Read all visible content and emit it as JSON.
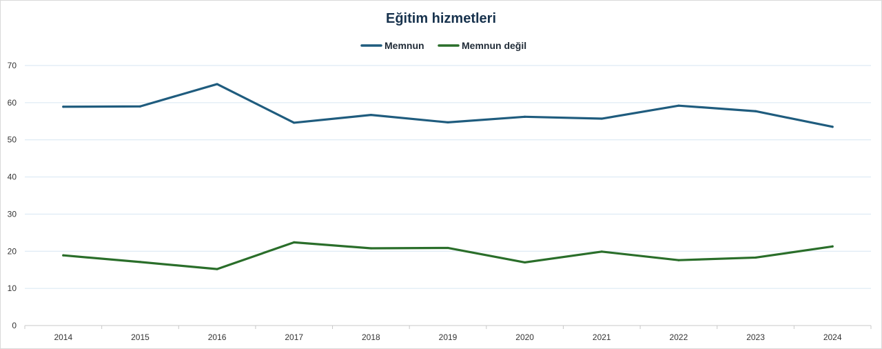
{
  "chart_data": {
    "type": "line",
    "title": "Eğitim hizmetleri",
    "xlabel": "",
    "ylabel": "",
    "categories": [
      "2014",
      "2015",
      "2016",
      "2017",
      "2018",
      "2019",
      "2020",
      "2021",
      "2022",
      "2023",
      "2024"
    ],
    "y_ticks": [
      "0",
      "10",
      "20",
      "30",
      "40",
      "50",
      "60",
      "70"
    ],
    "ylim": [
      0,
      70
    ],
    "grid": true,
    "legend_position": "top",
    "series": [
      {
        "name": "Memnun",
        "color": "#1f5c7e",
        "values": [
          58.9,
          59.0,
          65.0,
          54.6,
          56.7,
          54.7,
          56.2,
          55.7,
          59.2,
          57.7,
          53.5
        ]
      },
      {
        "name": "Memnun değil",
        "color": "#2a6e2a",
        "values": [
          18.9,
          17.1,
          15.2,
          22.4,
          20.8,
          20.9,
          17.0,
          19.9,
          17.6,
          18.3,
          21.3
        ]
      }
    ]
  }
}
